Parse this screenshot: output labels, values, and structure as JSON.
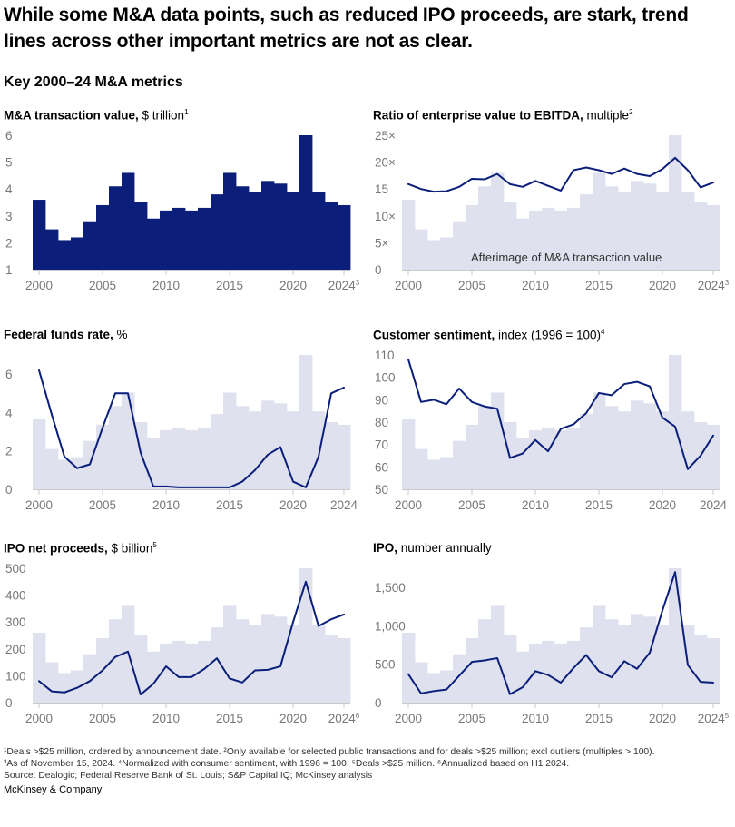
{
  "headline": "While some M&A data points, such as reduced IPO proceeds, are stark, trend lines across other important metrics are not as clear.",
  "subtitle": "Key 2000–24 M&A metrics",
  "colors": {
    "bar": "#0b1f7a",
    "afterimage": "#dfe1ef",
    "line": "#0b1f7a",
    "axis": "#c9c9c9",
    "tick": "#777777"
  },
  "footnotes": {
    "line1": "¹Deals >$25 million, ordered by announcement date. ²Only available for selected public transactions and for deals >$25 million; excl outliers (multiples > 100).",
    "line2": "³As of November 15, 2024. ⁴Normalized with consumer sentiment, with 1996 = 100. ⁵Deals >$25 million. ⁶Annualized based on H1 2024.",
    "source": "Source: Dealogic; Federal Reserve Bank of St. Louis; S&P Capital IQ; McKinsey analysis"
  },
  "brand": "McKinsey & Company",
  "chart_data": [
    {
      "id": "mna-value",
      "type": "bar",
      "title_bold": "M&A transaction value,",
      "title_rest": " $ trillion",
      "title_sup": "1",
      "x": [
        2000,
        2001,
        2002,
        2003,
        2004,
        2005,
        2006,
        2007,
        2008,
        2009,
        2010,
        2011,
        2012,
        2013,
        2014,
        2015,
        2016,
        2017,
        2018,
        2019,
        2020,
        2021,
        2022,
        2023,
        2024
      ],
      "values": [
        3.6,
        2.5,
        2.1,
        2.2,
        2.8,
        3.4,
        4.1,
        4.6,
        3.5,
        2.9,
        3.2,
        3.3,
        3.2,
        3.3,
        3.8,
        4.6,
        4.1,
        3.9,
        4.3,
        4.2,
        3.9,
        6.0,
        3.9,
        3.5,
        3.4
      ],
      "ylim": [
        1,
        6
      ],
      "yticks": [
        {
          "v": 1,
          "label": "1"
        },
        {
          "v": 2,
          "label": "2"
        },
        {
          "v": 3,
          "label": "3"
        },
        {
          "v": 4,
          "label": "4"
        },
        {
          "v": 5,
          "label": "5"
        },
        {
          "v": 6,
          "label": "6"
        }
      ],
      "xticks": [
        {
          "v": 2000,
          "label": "2000"
        },
        {
          "v": 2005,
          "label": "2005"
        },
        {
          "v": 2010,
          "label": "2010"
        },
        {
          "v": 2015,
          "label": "2015"
        },
        {
          "v": 2020,
          "label": "2020"
        },
        {
          "v": 2024,
          "label": "2024",
          "sup": "3"
        }
      ]
    },
    {
      "id": "ev-ebitda",
      "type": "line",
      "title_bold": "Ratio of enterprise value to EBITDA,",
      "title_rest": " multiple",
      "title_sup": "2",
      "x": [
        2000,
        2001,
        2002,
        2003,
        2004,
        2005,
        2006,
        2007,
        2008,
        2009,
        2010,
        2011,
        2012,
        2013,
        2014,
        2015,
        2016,
        2017,
        2018,
        2019,
        2020,
        2021,
        2022,
        2023,
        2024
      ],
      "series": [
        {
          "values": [
            15.9,
            15.0,
            14.5,
            14.6,
            15.4,
            16.9,
            16.8,
            17.8,
            15.9,
            15.4,
            16.5,
            15.6,
            14.7,
            18.5,
            19.0,
            18.5,
            17.8,
            18.8,
            17.8,
            17.4,
            18.7,
            20.8,
            18.5,
            15.3,
            16.2
          ]
        }
      ],
      "afterimage": [
        3.6,
        2.5,
        2.1,
        2.2,
        2.8,
        3.4,
        4.1,
        4.6,
        3.5,
        2.9,
        3.2,
        3.3,
        3.2,
        3.3,
        3.8,
        4.6,
        4.1,
        3.9,
        4.3,
        4.2,
        3.9,
        6.0,
        3.9,
        3.5,
        3.4
      ],
      "afterimage_ylim": [
        1,
        6
      ],
      "annotation": "Afterimage of M&A transaction value",
      "ylim": [
        0,
        25
      ],
      "yticks": [
        {
          "v": 0,
          "label": "0"
        },
        {
          "v": 5,
          "label": "5×"
        },
        {
          "v": 10,
          "label": "10×"
        },
        {
          "v": 15,
          "label": "15"
        },
        {
          "v": 20,
          "label": "20×"
        },
        {
          "v": 25,
          "label": "25×"
        }
      ],
      "xticks": [
        {
          "v": 2000,
          "label": "2000"
        },
        {
          "v": 2005,
          "label": "2005"
        },
        {
          "v": 2010,
          "label": "2010"
        },
        {
          "v": 2015,
          "label": "2015"
        },
        {
          "v": 2020,
          "label": "2020"
        },
        {
          "v": 2024,
          "label": "2024",
          "sup": "3"
        }
      ]
    },
    {
      "id": "fed-funds",
      "type": "line",
      "title_bold": "Federal funds rate,",
      "title_rest": " %",
      "title_sup": "",
      "x": [
        2000,
        2001,
        2002,
        2003,
        2004,
        2005,
        2006,
        2007,
        2008,
        2009,
        2010,
        2011,
        2012,
        2013,
        2014,
        2015,
        2016,
        2017,
        2018,
        2019,
        2020,
        2021,
        2022,
        2023,
        2024
      ],
      "series": [
        {
          "values": [
            6.2,
            3.9,
            1.7,
            1.1,
            1.3,
            3.2,
            5.0,
            5.0,
            1.9,
            0.15,
            0.15,
            0.1,
            0.1,
            0.1,
            0.1,
            0.1,
            0.4,
            1.0,
            1.8,
            2.2,
            0.4,
            0.1,
            1.7,
            5.0,
            5.3
          ]
        }
      ],
      "afterimage": [
        3.6,
        2.5,
        2.1,
        2.2,
        2.8,
        3.4,
        4.1,
        4.6,
        3.5,
        2.9,
        3.2,
        3.3,
        3.2,
        3.3,
        3.8,
        4.6,
        4.1,
        3.9,
        4.3,
        4.2,
        3.9,
        6.0,
        3.9,
        3.5,
        3.4
      ],
      "afterimage_ylim": [
        1,
        6
      ],
      "ylim": [
        0,
        7
      ],
      "yticks": [
        {
          "v": 0,
          "label": "0"
        },
        {
          "v": 2,
          "label": "2"
        },
        {
          "v": 4,
          "label": "4"
        },
        {
          "v": 6,
          "label": "6"
        }
      ],
      "xticks": [
        {
          "v": 2000,
          "label": "2000"
        },
        {
          "v": 2005,
          "label": "2005"
        },
        {
          "v": 2010,
          "label": "2010"
        },
        {
          "v": 2015,
          "label": "2015"
        },
        {
          "v": 2020,
          "label": "2020"
        },
        {
          "v": 2024,
          "label": "2024"
        }
      ]
    },
    {
      "id": "sentiment",
      "type": "line",
      "title_bold": "Customer sentiment,",
      "title_rest": " index (1996 = 100)",
      "title_sup": "4",
      "x": [
        2000,
        2001,
        2002,
        2003,
        2004,
        2005,
        2006,
        2007,
        2008,
        2009,
        2010,
        2011,
        2012,
        2013,
        2014,
        2015,
        2016,
        2017,
        2018,
        2019,
        2020,
        2021,
        2022,
        2023,
        2024
      ],
      "series": [
        {
          "values": [
            108,
            89,
            90,
            88,
            95,
            89,
            87,
            86,
            64,
            66,
            72,
            67,
            77,
            79,
            84,
            93,
            92,
            97,
            98,
            96,
            82,
            78,
            59,
            65,
            74
          ]
        }
      ],
      "afterimage": [
        3.6,
        2.5,
        2.1,
        2.2,
        2.8,
        3.4,
        4.1,
        4.6,
        3.5,
        2.9,
        3.2,
        3.3,
        3.2,
        3.3,
        3.8,
        4.6,
        4.1,
        3.9,
        4.3,
        4.2,
        3.9,
        6.0,
        3.9,
        3.5,
        3.4
      ],
      "afterimage_ylim": [
        1,
        6
      ],
      "ylim": [
        50,
        110
      ],
      "yticks": [
        {
          "v": 50,
          "label": "50"
        },
        {
          "v": 60,
          "label": "60"
        },
        {
          "v": 70,
          "label": "70"
        },
        {
          "v": 80,
          "label": "80"
        },
        {
          "v": 90,
          "label": "90"
        },
        {
          "v": 100,
          "label": "100"
        },
        {
          "v": 110,
          "label": "110"
        }
      ],
      "xticks": [
        {
          "v": 2000,
          "label": "2000"
        },
        {
          "v": 2005,
          "label": "2005"
        },
        {
          "v": 2010,
          "label": "2010"
        },
        {
          "v": 2015,
          "label": "2015"
        },
        {
          "v": 2020,
          "label": "2020"
        },
        {
          "v": 2024,
          "label": "2024"
        }
      ]
    },
    {
      "id": "ipo-proceeds",
      "type": "line",
      "title_bold": "IPO net proceeds,",
      "title_rest": " $ billion",
      "title_sup": "5",
      "x": [
        2000,
        2001,
        2002,
        2003,
        2004,
        2005,
        2006,
        2007,
        2008,
        2009,
        2010,
        2011,
        2012,
        2013,
        2014,
        2015,
        2016,
        2017,
        2018,
        2019,
        2020,
        2021,
        2022,
        2023,
        2024
      ],
      "series": [
        {
          "values": [
            80,
            42,
            38,
            55,
            80,
            120,
            170,
            190,
            30,
            70,
            135,
            95,
            95,
            125,
            165,
            90,
            75,
            120,
            122,
            135,
            300,
            450,
            285,
            310,
            328
          ]
        }
      ],
      "afterimage": [
        3.6,
        2.5,
        2.1,
        2.2,
        2.8,
        3.4,
        4.1,
        4.6,
        3.5,
        2.9,
        3.2,
        3.3,
        3.2,
        3.3,
        3.8,
        4.6,
        4.1,
        3.9,
        4.3,
        4.2,
        3.9,
        6.0,
        3.9,
        3.5,
        3.4
      ],
      "afterimage_ylim": [
        1,
        6
      ],
      "ylim": [
        0,
        500
      ],
      "yticks": [
        {
          "v": 0,
          "label": "0"
        },
        {
          "v": 100,
          "label": "100"
        },
        {
          "v": 200,
          "label": "200"
        },
        {
          "v": 300,
          "label": "300"
        },
        {
          "v": 400,
          "label": "400"
        },
        {
          "v": 500,
          "label": "500"
        }
      ],
      "xticks": [
        {
          "v": 2000,
          "label": "2000"
        },
        {
          "v": 2005,
          "label": "2005"
        },
        {
          "v": 2010,
          "label": "2010"
        },
        {
          "v": 2015,
          "label": "2015"
        },
        {
          "v": 2020,
          "label": "2020"
        },
        {
          "v": 2024,
          "label": "2024",
          "sup": "6"
        }
      ]
    },
    {
      "id": "ipo-number",
      "type": "line",
      "title_bold": "IPO,",
      "title_rest": " number annually",
      "title_sup": "",
      "x": [
        2000,
        2001,
        2002,
        2003,
        2004,
        2005,
        2006,
        2007,
        2008,
        2009,
        2010,
        2011,
        2012,
        2013,
        2014,
        2015,
        2016,
        2017,
        2018,
        2019,
        2020,
        2021,
        2022,
        2023,
        2024
      ],
      "series": [
        {
          "values": [
            370,
            120,
            150,
            170,
            350,
            530,
            550,
            580,
            110,
            200,
            410,
            360,
            260,
            450,
            620,
            410,
            330,
            540,
            440,
            650,
            1200,
            1700,
            490,
            270,
            260
          ]
        }
      ],
      "afterimage": [
        3.6,
        2.5,
        2.1,
        2.2,
        2.8,
        3.4,
        4.1,
        4.6,
        3.5,
        2.9,
        3.2,
        3.3,
        3.2,
        3.3,
        3.8,
        4.6,
        4.1,
        3.9,
        4.3,
        4.2,
        3.9,
        6.0,
        3.9,
        3.5,
        3.4
      ],
      "afterimage_ylim": [
        1,
        6
      ],
      "ylim": [
        0,
        1750
      ],
      "yticks": [
        {
          "v": 0,
          "label": "0"
        },
        {
          "v": 500,
          "label": "500"
        },
        {
          "v": 1000,
          "label": "1,000"
        },
        {
          "v": 1500,
          "label": "1,500"
        }
      ],
      "xticks": [
        {
          "v": 2000,
          "label": "2000"
        },
        {
          "v": 2005,
          "label": "2005"
        },
        {
          "v": 2010,
          "label": "2010"
        },
        {
          "v": 2015,
          "label": "2015"
        },
        {
          "v": 2020,
          "label": "2020"
        },
        {
          "v": 2024,
          "label": "2024",
          "sup": "5"
        }
      ]
    }
  ]
}
